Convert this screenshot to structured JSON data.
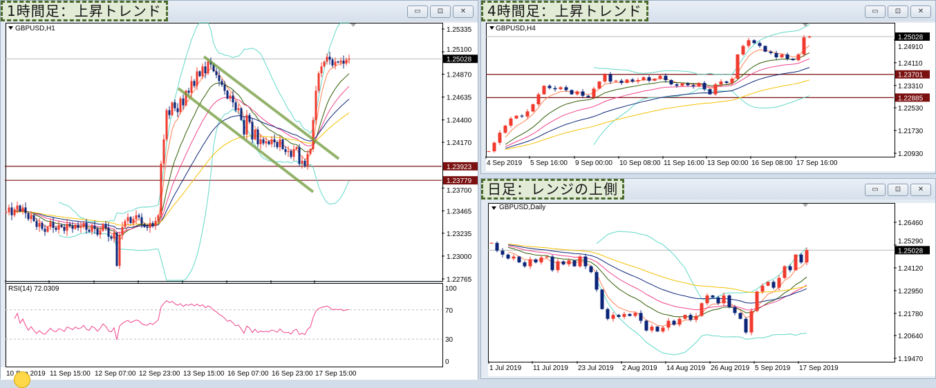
{
  "windows": [
    {
      "title": "1時間足：上昇トレンド",
      "symbol": "GBPUSD,H1",
      "buttons": [
        "▭",
        "⊡",
        "✕"
      ]
    },
    {
      "title": "4時間足：上昇トレンド",
      "symbol": "GBPUSD,H4",
      "buttons": [
        "▭",
        "⊡",
        "✕"
      ]
    },
    {
      "title": "日足：レンジの上側",
      "symbol": "GBPUSD,Daily",
      "buttons": [
        "▭",
        "⊡",
        "✕"
      ]
    }
  ],
  "rsi_label": "RSI(14) 72.0309",
  "colors": {
    "bull": "#f03a2e",
    "bear": "#0b2478",
    "bands": "#5fd8c8",
    "hline": "#7a1010",
    "current": "#000000",
    "trendline": "#6f9a3a",
    "rsi": "#f0418a",
    "ma": [
      "#ff7f50",
      "#2e5a00",
      "#f0418a",
      "#0b2478",
      "#f5c000"
    ]
  },
  "chart_data": [
    {
      "type": "candlestick",
      "symbol": "GBPUSD,H1",
      "closes": [
        1.2345,
        1.235,
        1.2342,
        1.2348,
        1.2352,
        1.2346,
        1.235,
        1.2344,
        1.2338,
        1.2342,
        1.2336,
        1.233,
        1.2334,
        1.2328,
        1.2325,
        1.233,
        1.2335,
        1.2329,
        1.2327,
        1.2332,
        1.233,
        1.2326,
        1.2333,
        1.2331,
        1.2328,
        1.2332,
        1.2329,
        1.233,
        1.2334,
        1.2327,
        1.2325,
        1.2331,
        1.2328,
        1.2322,
        1.2326,
        1.2333,
        1.2329,
        1.232,
        1.2318,
        1.2324,
        1.229,
        1.2322,
        1.233,
        1.2336,
        1.234,
        1.2334,
        1.2338,
        1.2342,
        1.234,
        1.2333,
        1.233,
        1.2329,
        1.2334,
        1.2331,
        1.2336,
        1.2342,
        1.2395,
        1.242,
        1.245,
        1.2445,
        1.2458,
        1.2452,
        1.2448,
        1.2462,
        1.2455,
        1.247,
        1.2468,
        1.248,
        1.2475,
        1.249,
        1.2485,
        1.2495,
        1.2488,
        1.25,
        1.2497,
        1.249,
        1.2486,
        1.248,
        1.2476,
        1.247,
        1.2462,
        1.2465,
        1.2458,
        1.245,
        1.2452,
        1.244,
        1.2425,
        1.2445,
        1.2438,
        1.242,
        1.243,
        1.2415,
        1.242,
        1.2416,
        1.2418,
        1.2415,
        1.242,
        1.2417,
        1.2412,
        1.242,
        1.241,
        1.2407,
        1.2408,
        1.2402,
        1.241,
        1.2412,
        1.2395,
        1.2398,
        1.2393,
        1.2405,
        1.241,
        1.244,
        1.247,
        1.2488,
        1.2495,
        1.25,
        1.2505,
        1.2502,
        1.2496,
        1.25,
        1.2499,
        1.2501,
        1.2498,
        1.2502,
        1.2503
      ],
      "y_ticks": [
        "1.25335",
        "1.25100",
        "1.24870",
        "1.24635",
        "1.24400",
        "1.24170",
        "1.23700",
        "1.23465",
        "1.23235",
        "1.23000",
        "1.22765"
      ],
      "x_ticks": [
        "10 Sep 2019",
        "11 Sep 15:00",
        "12 Sep 07:00",
        "12 Sep 23:00",
        "13 Sep 15:00",
        "16 Sep 07:00",
        "16 Sep 23:00",
        "17 Sep 15:00"
      ],
      "current_price": "1.25028",
      "hlines": [
        "1.23923",
        "1.23779"
      ],
      "rsi": {
        "ticks": [
          "100",
          "70",
          "30",
          "0"
        ],
        "levels": [
          70,
          30
        ],
        "ylim": [
          0,
          100
        ]
      }
    },
    {
      "type": "candlestick",
      "symbol": "GBPUSD,H4",
      "closes": [
        1.21,
        1.213,
        1.2165,
        1.219,
        1.2215,
        1.2225,
        1.2222,
        1.224,
        1.2265,
        1.23,
        1.233,
        1.2322,
        1.2318,
        1.2325,
        1.2315,
        1.23,
        1.231,
        1.2295,
        1.229,
        1.232,
        1.2345,
        1.237,
        1.2345,
        1.2348,
        1.234,
        1.2352,
        1.2345,
        1.235,
        1.236,
        1.2348,
        1.2355,
        1.2365,
        1.235,
        1.2335,
        1.233,
        1.2338,
        1.2332,
        1.2328,
        1.234,
        1.2318,
        1.23,
        1.2335,
        1.2345,
        1.234,
        1.2355,
        1.244,
        1.247,
        1.249,
        1.248,
        1.247,
        1.245,
        1.2445,
        1.243,
        1.244,
        1.2425,
        1.242,
        1.244,
        1.25,
        1.2503
      ],
      "y_ticks": [
        "1.24910",
        "1.24110",
        "1.23310",
        "1.22530",
        "1.21730",
        "1.20930"
      ],
      "x_ticks": [
        "4 Sep 2019",
        "5 Sep 16:00",
        "9 Sep 00:00",
        "10 Sep 08:00",
        "11 Sep 16:00",
        "13 Sep 00:00",
        "16 Sep 08:00",
        "17 Sep 16:00"
      ],
      "current_price": "1.25028",
      "hlines": [
        "1.23701",
        "1.22885"
      ]
    },
    {
      "type": "candlestick",
      "symbol": "GBPUSD,Daily",
      "closes": [
        1.254,
        1.25,
        1.248,
        1.246,
        1.247,
        1.244,
        1.242,
        1.2455,
        1.244,
        1.2465,
        1.247,
        1.24,
        1.2445,
        1.243,
        1.245,
        1.242,
        1.247,
        1.242,
        1.239,
        1.23,
        1.22,
        1.215,
        1.217,
        1.216,
        1.2175,
        1.2165,
        1.218,
        1.214,
        1.209,
        1.211,
        1.2085,
        1.2105,
        1.214,
        1.212,
        1.215,
        1.217,
        1.2145,
        1.2165,
        1.223,
        1.227,
        1.226,
        1.223,
        1.227,
        1.221,
        1.218,
        1.215,
        1.208,
        1.219,
        1.229,
        1.232,
        1.234,
        1.231,
        1.236,
        1.242,
        1.24,
        1.248,
        1.244,
        1.2503
      ],
      "y_ticks": [
        "1.26460",
        "1.25290",
        "1.24120",
        "1.22950",
        "1.21780",
        "1.20640",
        "1.19470"
      ],
      "x_ticks": [
        "1 Jul 2019",
        "11 Jul 2019",
        "23 Jul 2019",
        "2 Aug 2019",
        "14 Aug 2019",
        "26 Aug 2019",
        "5 Sep 2019",
        "17 Sep 2019"
      ],
      "current_price": "1.25028",
      "hlines": []
    }
  ]
}
